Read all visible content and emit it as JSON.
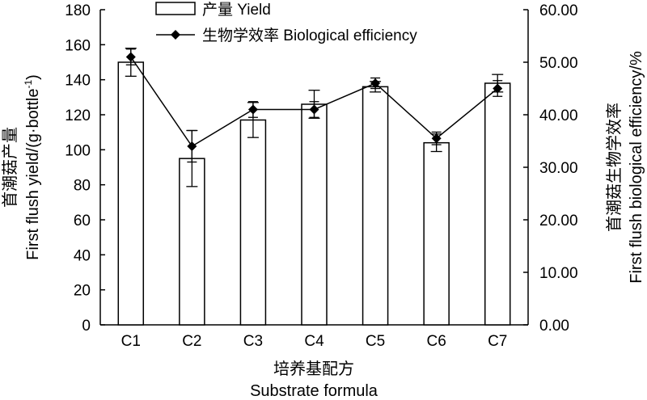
{
  "chart_data": {
    "type": "bar",
    "categories": [
      "C1",
      "C2",
      "C3",
      "C4",
      "C5",
      "C6",
      "C7"
    ],
    "series": [
      {
        "name": "产量 Yield",
        "type": "bar",
        "axis": "left",
        "values": [
          150,
          95,
          117,
          126,
          136,
          104,
          138
        ],
        "errors": [
          8,
          16,
          10,
          8,
          3,
          5,
          5
        ]
      },
      {
        "name": "生物学效率 Biological efficiency",
        "type": "line",
        "axis": "right",
        "values": [
          51.0,
          34.0,
          41.0,
          41.0,
          46.0,
          35.5,
          45.0
        ],
        "errors": [
          1.5,
          3.0,
          1.5,
          1.5,
          1.0,
          1.2,
          1.5
        ]
      }
    ],
    "ylim_left": [
      0,
      180
    ],
    "yticks_left": [
      "0",
      "20",
      "40",
      "60",
      "80",
      "100",
      "120",
      "140",
      "160",
      "180"
    ],
    "ylim_right": [
      0,
      60
    ],
    "yticks_right": [
      "0.00",
      "10.00",
      "20.00",
      "30.00",
      "40.00",
      "50.00",
      "60.00"
    ],
    "xlabel_cn": "培养基配方",
    "xlabel_en": "Substrate formula",
    "ylabel_left_cn": "首潮菇产量",
    "ylabel_left_en": "First flush yield/(g·bottle",
    "ylabel_left_sup": "-1",
    "ylabel_left_close": ")",
    "ylabel_right_cn": "首潮菇生物学效率",
    "ylabel_right_en": "First flush biological efficiency/%",
    "legend_position": "top-center"
  }
}
